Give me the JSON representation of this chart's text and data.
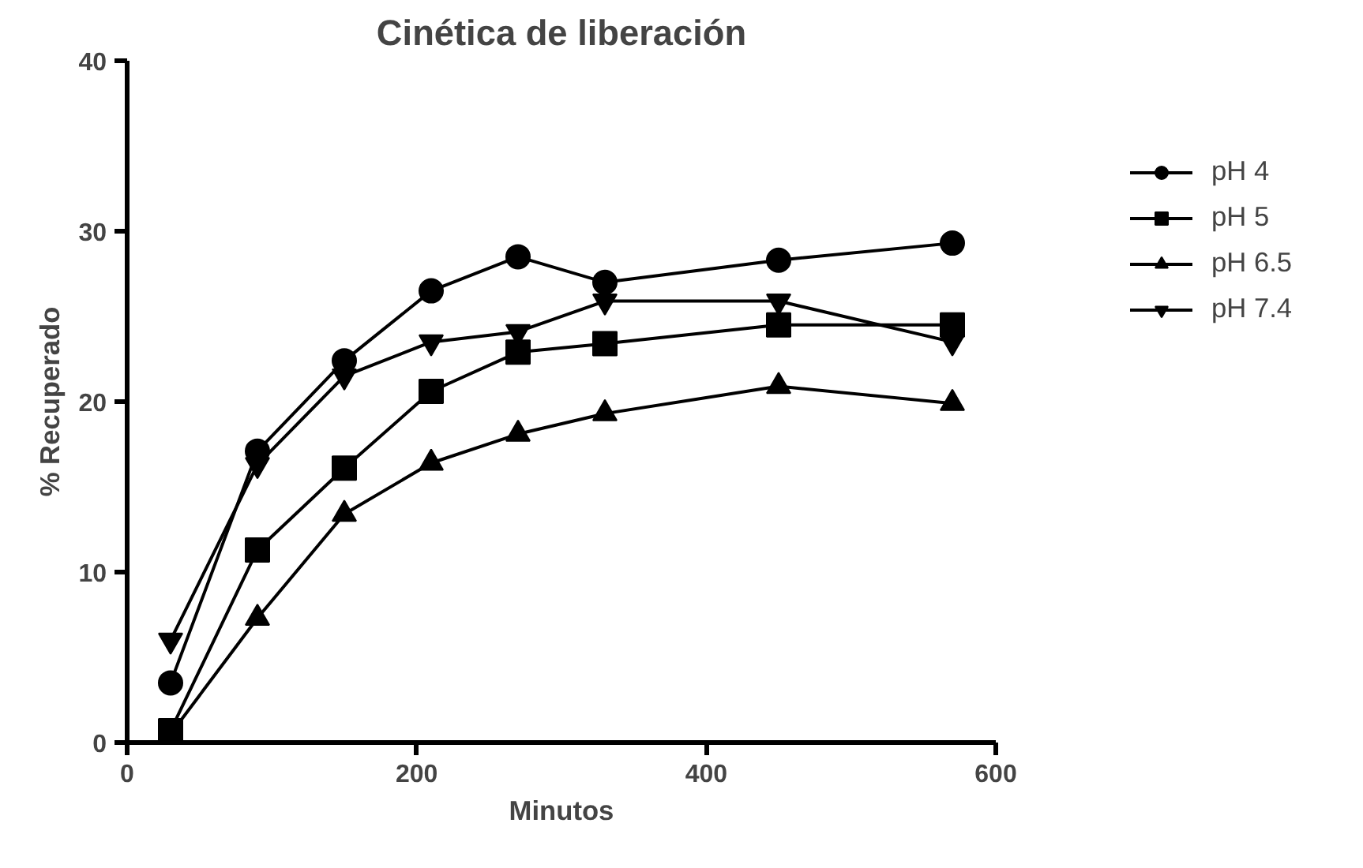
{
  "chart_data": {
    "type": "line",
    "title": "Cinética de liberación",
    "xlabel": "Minutos",
    "ylabel": "% Recuperado",
    "x": [
      30,
      90,
      150,
      210,
      270,
      330,
      450,
      570
    ],
    "series": [
      {
        "name": "pH 4",
        "color": "#000000",
        "marker": "circle",
        "values": [
          3.5,
          17.1,
          22.4,
          26.5,
          28.5,
          27.0,
          28.3,
          29.3
        ]
      },
      {
        "name": "pH 5",
        "color": "#000000",
        "marker": "square",
        "values": [
          0.7,
          11.3,
          16.1,
          20.6,
          22.9,
          23.4,
          24.5,
          24.5
        ]
      },
      {
        "name": "pH 6.5",
        "color": "#000000",
        "marker": "triangle",
        "values": [
          0.5,
          7.3,
          13.4,
          16.4,
          18.1,
          19.3,
          20.9,
          19.9
        ]
      },
      {
        "name": "pH 7.4",
        "color": "#000000",
        "marker": "triangle_down",
        "values": [
          6.0,
          16.3,
          21.5,
          23.5,
          24.1,
          25.9,
          25.9,
          23.5
        ]
      }
    ],
    "xlim": [
      0,
      600
    ],
    "xticks": [
      0,
      200,
      400,
      600
    ],
    "ylim": [
      0,
      40
    ],
    "yticks": [
      0,
      10,
      20,
      30,
      40
    ],
    "grid": false,
    "legend": "right",
    "line_style": "solid"
  }
}
